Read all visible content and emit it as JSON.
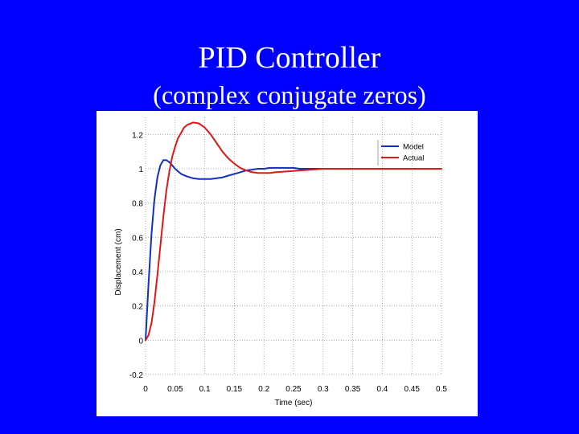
{
  "slide": {
    "title": "PID Controller",
    "subtitle": "(complex conjugate zeros)"
  },
  "colors": {
    "background": "#0000ff",
    "title_text": "#ffffff",
    "model": "#1030c0",
    "actual": "#e01818",
    "grid": "#9a9a9a"
  },
  "chart_data": {
    "type": "line",
    "xlabel": "Time (sec)",
    "ylabel": "Displacement (cm)",
    "xlim": [
      0,
      0.5
    ],
    "ylim": [
      -0.2,
      1.3
    ],
    "xticks": [
      "0",
      "0.05",
      "0.1",
      "0.15",
      "0.2",
      "0.25",
      "0.3",
      "0.35",
      "0.4",
      "0.45",
      "0.5"
    ],
    "yticks": [
      "-0.2",
      "0",
      "0.2",
      "0.4",
      "0.6",
      "0.8",
      "1",
      "1.2"
    ],
    "grid": true,
    "legend_position": "top-right",
    "series": [
      {
        "name": "Model",
        "color": "#1030c0",
        "x": [
          0,
          0.005,
          0.01,
          0.015,
          0.02,
          0.025,
          0.03,
          0.035,
          0.04,
          0.045,
          0.05,
          0.055,
          0.06,
          0.07,
          0.08,
          0.09,
          0.1,
          0.11,
          0.12,
          0.13,
          0.14,
          0.15,
          0.16,
          0.17,
          0.18,
          0.19,
          0.2,
          0.21,
          0.22,
          0.23,
          0.24,
          0.25,
          0.26,
          0.27,
          0.28,
          0.29,
          0.3
        ],
        "y": [
          0,
          0.33,
          0.62,
          0.82,
          0.95,
          1.02,
          1.05,
          1.05,
          1.04,
          1.02,
          1.0,
          0.985,
          0.97,
          0.955,
          0.945,
          0.94,
          0.94,
          0.94,
          0.945,
          0.95,
          0.96,
          0.97,
          0.98,
          0.99,
          0.995,
          1.0,
          1.0,
          1.005,
          1.005,
          1.005,
          1.005,
          1.005,
          1.0,
          1.0,
          1.0,
          1.0,
          1.0
        ]
      },
      {
        "name": "Actual",
        "color": "#e01818",
        "x": [
          0,
          0.005,
          0.01,
          0.015,
          0.02,
          0.025,
          0.03,
          0.035,
          0.04,
          0.045,
          0.05,
          0.055,
          0.06,
          0.065,
          0.07,
          0.08,
          0.09,
          0.1,
          0.11,
          0.12,
          0.13,
          0.14,
          0.15,
          0.16,
          0.17,
          0.18,
          0.19,
          0.2,
          0.21,
          0.22,
          0.24,
          0.26,
          0.28,
          0.3,
          0.32,
          0.35,
          0.4,
          0.45,
          0.5
        ],
        "y": [
          0,
          0.03,
          0.1,
          0.22,
          0.38,
          0.55,
          0.72,
          0.87,
          0.98,
          1.07,
          1.13,
          1.18,
          1.21,
          1.24,
          1.255,
          1.27,
          1.265,
          1.24,
          1.2,
          1.15,
          1.1,
          1.06,
          1.03,
          1.005,
          0.99,
          0.98,
          0.975,
          0.975,
          0.975,
          0.98,
          0.985,
          0.99,
          0.995,
          1.0,
          1.0,
          1.0,
          1.0,
          1.0,
          1.0
        ]
      }
    ]
  }
}
